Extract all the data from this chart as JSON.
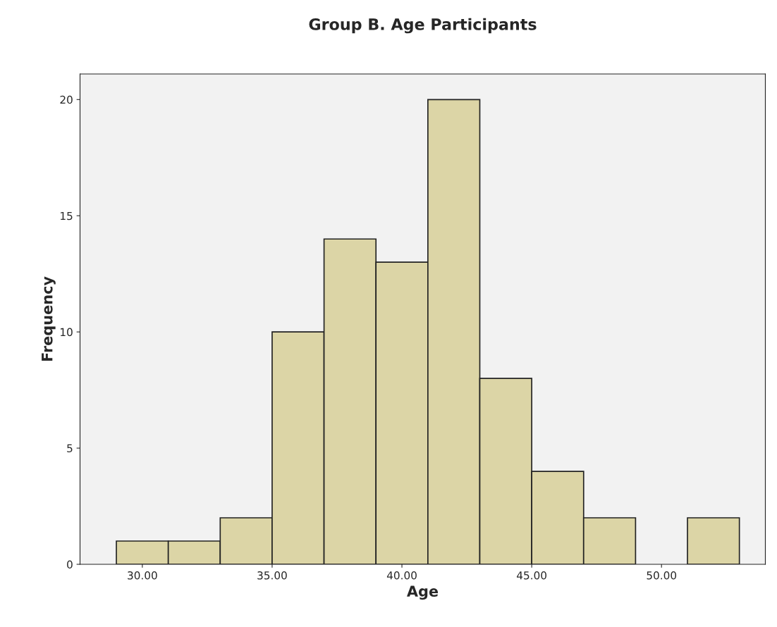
{
  "chart_data": {
    "type": "histogram",
    "title": "Group B. Age Participants",
    "xlabel": "Age",
    "ylabel": "Frequency",
    "bins": [
      29,
      31,
      33,
      35,
      37,
      39,
      41,
      43,
      45,
      47,
      49,
      51,
      53
    ],
    "values": [
      1,
      1,
      2,
      10,
      14,
      13,
      20,
      8,
      4,
      2,
      0,
      2
    ],
    "color": "#dcd5a6",
    "xlim": [
      27.6,
      54.0
    ],
    "ylim": [
      0,
      21.1
    ],
    "xticks": [
      {
        "value": 30,
        "label": "30.00"
      },
      {
        "value": 35,
        "label": "35.00"
      },
      {
        "value": 40,
        "label": "40.00"
      },
      {
        "value": 45,
        "label": "45.00"
      },
      {
        "value": 50,
        "label": "50.00"
      }
    ],
    "yticks": [
      0,
      5,
      10,
      15,
      20
    ],
    "grid": false
  }
}
